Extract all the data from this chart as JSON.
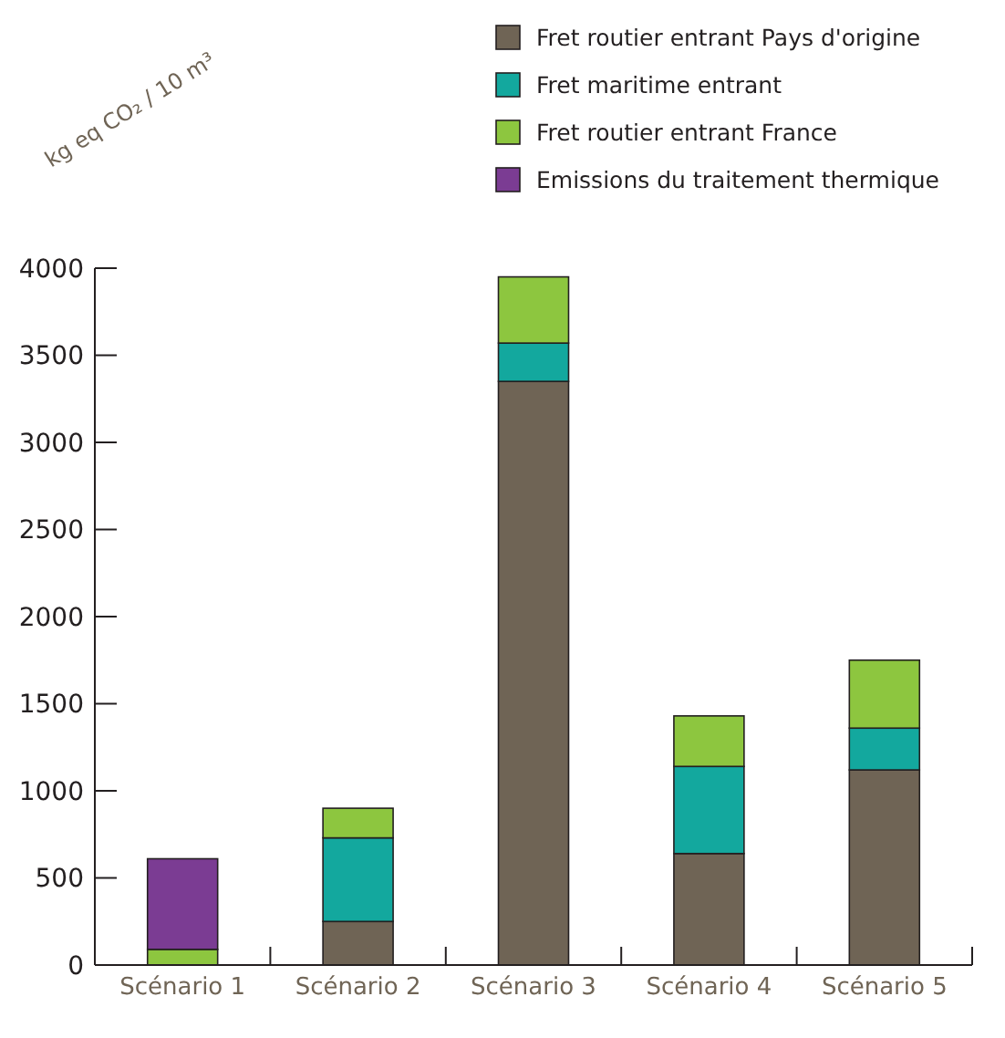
{
  "chart_data": {
    "type": "bar",
    "stacked": true,
    "ylabel": "kg eq CO₂ / 10 m³",
    "categories": [
      "Scénario 1",
      "Scénario 2",
      "Scénario 3",
      "Scénario 4",
      "Scénario 5"
    ],
    "series": [
      {
        "name": "Fret routier entrant Pays d'origine",
        "color": "#6f6455",
        "values": [
          0,
          250,
          3350,
          640,
          1120
        ]
      },
      {
        "name": "Fret maritime entrant",
        "color": "#13a89e",
        "values": [
          0,
          480,
          220,
          500,
          240
        ]
      },
      {
        "name": "Fret routier entrant France",
        "color": "#8dc63f",
        "values": [
          90,
          170,
          380,
          290,
          390
        ]
      },
      {
        "name": "Emissions du traitement thermique",
        "color": "#7b3c93",
        "values": [
          520,
          0,
          0,
          0,
          0
        ]
      }
    ],
    "ylim": [
      0,
      4000
    ],
    "yticks": [
      0,
      500,
      1000,
      1500,
      2000,
      2500,
      3000,
      3500,
      4000
    ],
    "grid": false,
    "legend": "top right"
  }
}
